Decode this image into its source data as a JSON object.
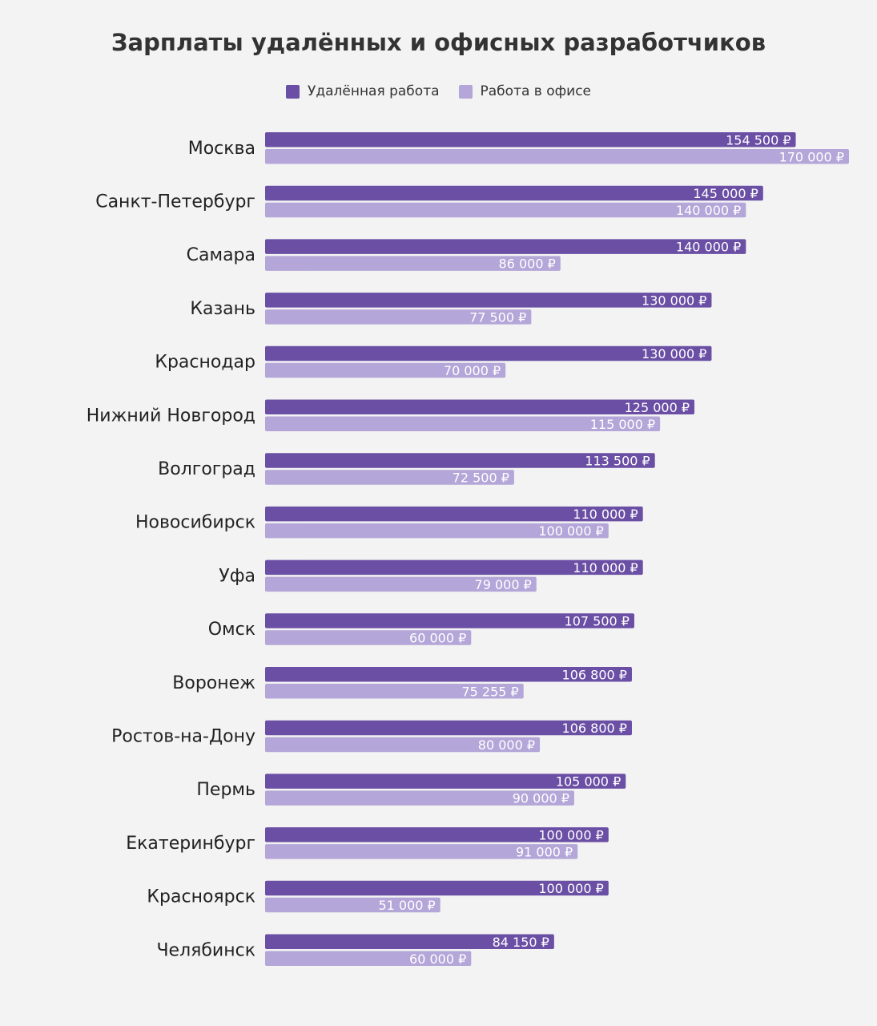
{
  "title": "Зарплаты удалённых и офисных разработчиков",
  "legend": {
    "remote": "Удалённая работа",
    "office": "Работа в офисе"
  },
  "colors": {
    "remote": "#6a4fa5",
    "office": "#b4a6d8",
    "background": "#f3f3f3"
  },
  "chart_data": {
    "type": "bar",
    "orientation": "horizontal",
    "title": "Зарплаты удалённых и офисных разработчиков",
    "legend_position": "top",
    "grid": false,
    "xlim": [
      0,
      170000
    ],
    "categories": [
      "Москва",
      "Санкт-Петербург",
      "Самара",
      "Казань",
      "Краснодар",
      "Нижний Новгород",
      "Волгоград",
      "Новосибирск",
      "Уфа",
      "Омск",
      "Воронеж",
      "Ростов-на-Дону",
      "Пермь",
      "Екатеринбург",
      "Красноярск",
      "Челябинск"
    ],
    "series": [
      {
        "name": "Удалённая работа",
        "values": [
          154500,
          145000,
          140000,
          130000,
          130000,
          125000,
          113500,
          110000,
          110000,
          107500,
          106800,
          106800,
          105000,
          100000,
          100000,
          84150
        ],
        "labels": [
          "154 500 ₽",
          "145 000 ₽",
          "140 000 ₽",
          "130 000 ₽",
          "130 000 ₽",
          "125 000 ₽",
          "113 500 ₽",
          "110 000 ₽",
          "110 000 ₽",
          "107 500 ₽",
          "106 800 ₽",
          "106 800 ₽",
          "105 000 ₽",
          "100 000 ₽",
          "100 000 ₽",
          "84 150 ₽"
        ]
      },
      {
        "name": "Работа в офисе",
        "values": [
          170000,
          140000,
          86000,
          77500,
          70000,
          115000,
          72500,
          100000,
          79000,
          60000,
          75255,
          80000,
          90000,
          91000,
          51000,
          60000
        ],
        "labels": [
          "170 000 ₽",
          "140 000 ₽",
          "86 000 ₽",
          "77 500 ₽",
          "70 000 ₽",
          "115 000 ₽",
          "72 500 ₽",
          "100 000 ₽",
          "79 000 ₽",
          "60 000 ₽",
          "75 255 ₽",
          "80 000 ₽",
          "90 000 ₽",
          "91 000 ₽",
          "51 000 ₽",
          "60 000 ₽"
        ]
      }
    ]
  }
}
